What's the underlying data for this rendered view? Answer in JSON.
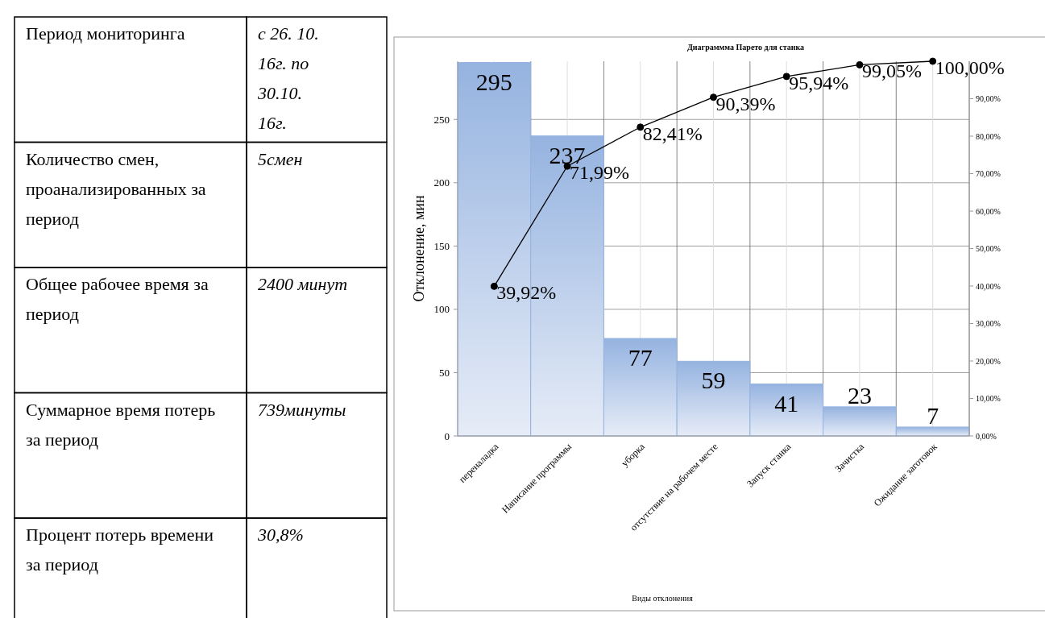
{
  "chart_data": [
    {
      "type": "other",
      "annotations": [
        "Период мониторинга",
        "с 26. 10. 16г. по 30.10. 16г.",
        "Количество смен, проанализированных за период",
        "5смен",
        "Общее рабочее время за период",
        "2400 минут",
        "Суммарное время потерь за период",
        "739минуты",
        "Процент потерь времени за период",
        "30,8%"
      ]
    },
    {
      "type": "bar",
      "title": "Диаграммма Парето для станка",
      "xlabel": "Виды отклонения",
      "ylabel": "Отклонение, мин",
      "categories": [
        "переналадка",
        "Написание программы",
        "уборка",
        "отсутствие на рабочем месте",
        "Запуск станка",
        "Зачистка",
        "Ожидание заготовок"
      ],
      "series": [
        {
          "type": "bar",
          "color": "#95b3e0",
          "values": [
            295,
            237,
            77,
            59,
            41,
            23,
            7
          ],
          "value_labels": [
            "295",
            "237",
            "77",
            "59",
            "41",
            "23",
            "7"
          ]
        },
        {
          "type": "line",
          "axis": "y2",
          "color": "#000000",
          "values": [
            39.92,
            71.99,
            82.41,
            90.39,
            95.94,
            99.05,
            100
          ],
          "value_labels": [
            "39,92%",
            "71,99%",
            "82,41%",
            "90,39%",
            "95,94%",
            "99,05%",
            "100,00%"
          ]
        }
      ],
      "ylim": [
        0,
        296
      ],
      "yticks": [
        0,
        50,
        100,
        150,
        200,
        250
      ],
      "y2lim": [
        0,
        100
      ],
      "y2ticks": [
        {
          "value": 0,
          "label": "0,00%"
        },
        {
          "value": 10,
          "label": "10,00%"
        },
        {
          "value": 20,
          "label": "20,00%"
        },
        {
          "value": 30,
          "label": "30,00%"
        },
        {
          "value": 40,
          "label": "40,00%"
        },
        {
          "value": 50,
          "label": "50,00%"
        },
        {
          "value": 60,
          "label": "60,00%"
        },
        {
          "value": 70,
          "label": "70,00%"
        },
        {
          "value": 80,
          "label": "80,00%"
        },
        {
          "value": 90,
          "label": "90,00%"
        }
      ],
      "grid": true,
      "marker": "circle",
      "line_style": "solid"
    }
  ]
}
